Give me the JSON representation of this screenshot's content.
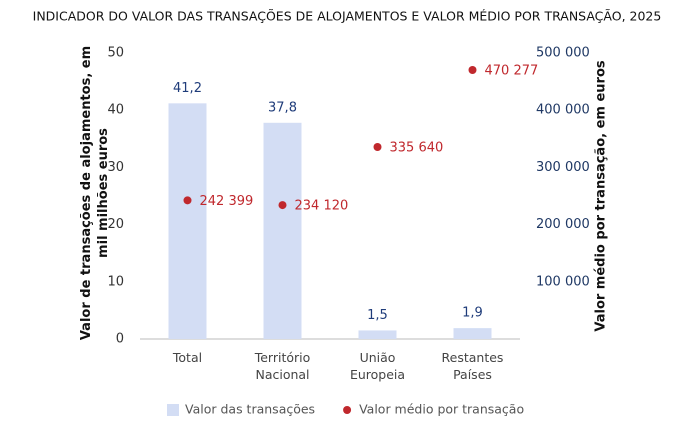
{
  "chart_data": {
    "type": "bar",
    "title": "INDICADOR DO VALOR DAS TRANSAÇÕES DE ALOJAMENTOS E VALOR MÉDIO POR TRANSAÇÃO, 2025",
    "y_label": "Valor de transações de alojamentos, em mil milhões euros",
    "y2_label": "Valor médio por transação, em euros",
    "categories": [
      "Total",
      "Território Nacional",
      "União Europeia",
      "Restantes Países"
    ],
    "series": [
      {
        "name": "Valor das transações",
        "type": "bar",
        "color": "#d3ddf4",
        "label_color": "#1f3c7a",
        "values": [
          41.2,
          37.8,
          1.5,
          1.9
        ],
        "value_labels": [
          "41,2",
          "37,8",
          "1,5",
          "1,9"
        ]
      },
      {
        "name": "Valor médio por transação",
        "type": "scatter",
        "axis": "y2",
        "color": "#c0282d",
        "label_color": "#c0282d",
        "values": [
          242399,
          234120,
          335640,
          470277
        ],
        "value_labels": [
          "242 399",
          "234 120",
          "335 640",
          "470 277"
        ]
      }
    ],
    "ylim": [
      0,
      50
    ],
    "yticks": [
      0,
      10,
      20,
      30,
      40,
      50
    ],
    "y2lim": [
      0,
      500000
    ],
    "y2ticks": [
      {
        "value": 100000,
        "label": "100 000"
      },
      {
        "value": 200000,
        "label": "200 000"
      },
      {
        "value": 300000,
        "label": "300 000"
      },
      {
        "value": 400000,
        "label": "400 000"
      },
      {
        "value": 500000,
        "label": "500 000"
      }
    ],
    "grid": false,
    "legend": "bottom"
  }
}
